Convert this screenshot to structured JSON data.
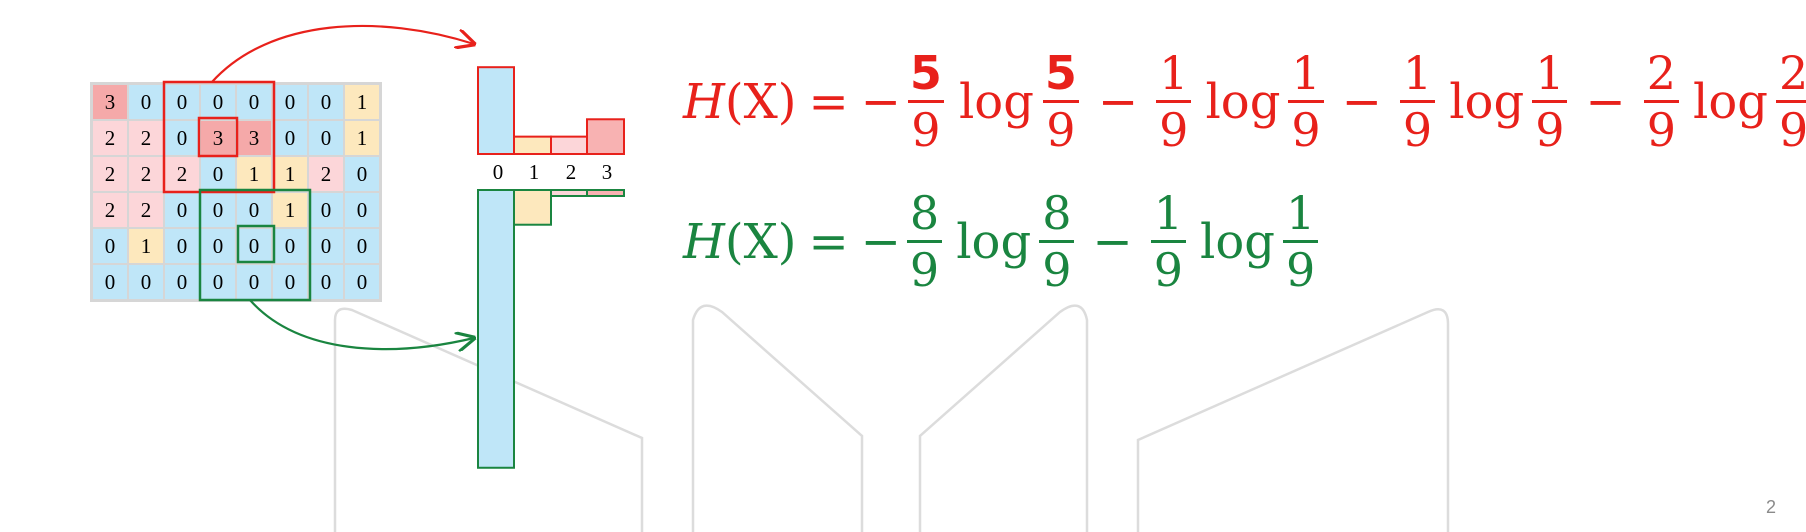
{
  "grid": {
    "values": [
      [
        "3",
        "0",
        "0",
        "0",
        "0",
        "0",
        "0",
        "1"
      ],
      [
        "2",
        "2",
        "0",
        "3",
        "3",
        "0",
        "0",
        "1"
      ],
      [
        "2",
        "2",
        "2",
        "0",
        "1",
        "1",
        "2",
        "0"
      ],
      [
        "2",
        "2",
        "0",
        "0",
        "0",
        "1",
        "0",
        "0"
      ],
      [
        "0",
        "1",
        "0",
        "0",
        "0",
        "0",
        "0",
        "0"
      ],
      [
        "0",
        "0",
        "0",
        "0",
        "0",
        "0",
        "0",
        "0"
      ]
    ]
  },
  "histogram": {
    "bins": [
      "0",
      "1",
      "2",
      "3"
    ],
    "red_counts": [
      5,
      1,
      1,
      2
    ],
    "green_counts": [
      8,
      1,
      0,
      0
    ]
  },
  "equations": {
    "red": {
      "lhs_H": "H",
      "lhs_X": "(X)",
      "eq": "=",
      "lead_minus": "−",
      "terms": [
        {
          "num": "5",
          "den": "9"
        },
        {
          "num": "1",
          "den": "9"
        },
        {
          "num": "1",
          "den": "9"
        },
        {
          "num": "2",
          "den": "9"
        }
      ],
      "minus": "−",
      "log": "log"
    },
    "green": {
      "lhs_H": "H",
      "lhs_X": "(X)",
      "eq": "=",
      "lead_minus": "−",
      "terms": [
        {
          "num": "8",
          "den": "9"
        },
        {
          "num": "1",
          "den": "9"
        }
      ],
      "minus": "−",
      "log": "log"
    }
  },
  "page_number": "2",
  "colors": {
    "red": "#e8211b",
    "green": "#1a8540",
    "cell_0": "#bfe6f8",
    "cell_1": "#fde8bd",
    "cell_2": "#fcd6d9",
    "cell_3": "#f5a9a9",
    "bar_0": "#bfe6f8",
    "bar_1": "#fde8bd",
    "bar_2": "#fcd6d9",
    "bar_3": "#f8b2b2"
  }
}
